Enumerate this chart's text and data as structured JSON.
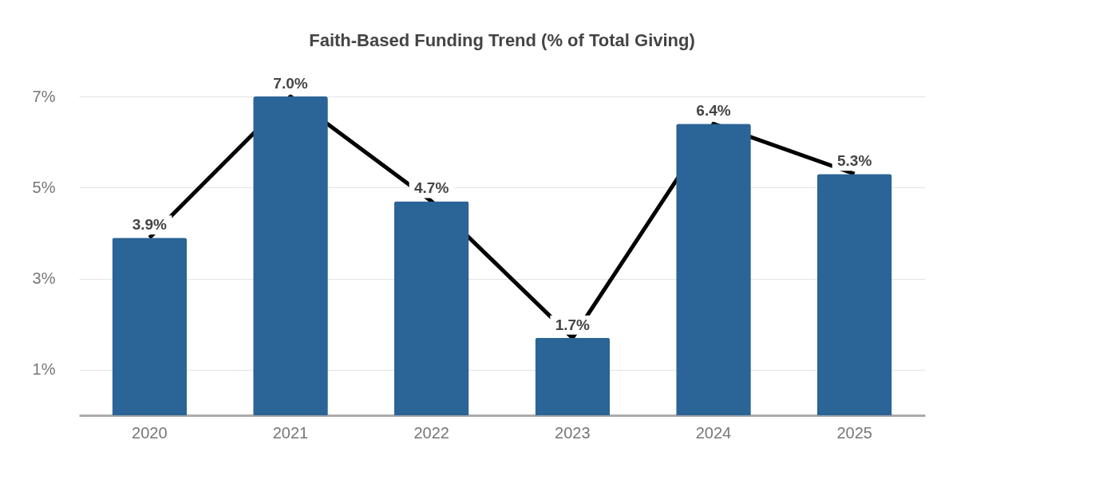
{
  "chart_data": {
    "type": "bar",
    "title": "Faith-Based Funding Trend (% of Total Giving)",
    "categories": [
      "2020",
      "2021",
      "2022",
      "2023",
      "2024",
      "2025"
    ],
    "series": [
      {
        "type": "line",
        "color": "#000000",
        "values": [
          3.9,
          7.0,
          4.7,
          1.7,
          6.4,
          5.3
        ]
      },
      {
        "color": "#2b6496",
        "values": [
          3.9,
          7.0,
          4.7,
          1.7,
          6.4,
          5.3
        ],
        "value_labels": [
          "3.9%",
          "7.0%",
          "4.7%",
          "1.7%",
          "6.4%",
          "5.3%"
        ]
      }
    ],
    "ylim": [
      0,
      7
    ],
    "yticks": [
      {
        "value": 1,
        "label": "1%"
      },
      {
        "value": 3,
        "label": "3%"
      },
      {
        "value": 5,
        "label": "5%"
      },
      {
        "value": 7,
        "label": "7%"
      }
    ],
    "grid": "y"
  }
}
